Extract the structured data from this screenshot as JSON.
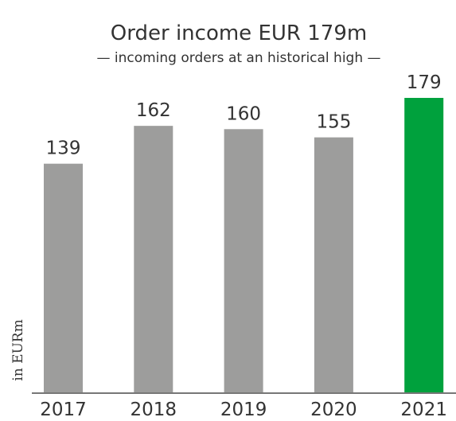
{
  "chart_data": {
    "type": "bar",
    "title": "Order income EUR 179m",
    "subtitle": "— incoming orders at an historical high —",
    "y_label": "in EURm",
    "categories": [
      "2017",
      "2018",
      "2019",
      "2020",
      "2021"
    ],
    "values": [
      139,
      162,
      160,
      155,
      179
    ],
    "colors": [
      "#9d9d9c",
      "#9d9d9c",
      "#9d9d9c",
      "#9d9d9c",
      "#00a13d"
    ]
  }
}
